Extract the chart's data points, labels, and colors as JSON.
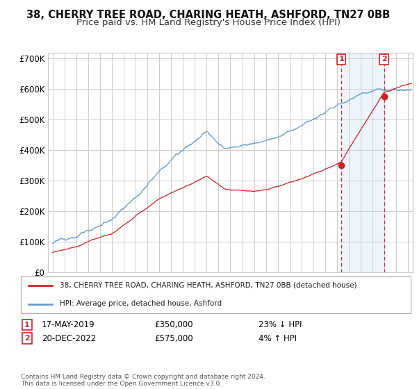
{
  "title1": "38, CHERRY TREE ROAD, CHARING HEATH, ASHFORD, TN27 0BB",
  "title2": "Price paid vs. HM Land Registry's House Price Index (HPI)",
  "ylim": [
    0,
    720000
  ],
  "yticks": [
    0,
    100000,
    200000,
    300000,
    400000,
    500000,
    600000,
    700000
  ],
  "ytick_labels": [
    "£0",
    "£100K",
    "£200K",
    "£300K",
    "£400K",
    "£500K",
    "£600K",
    "£700K"
  ],
  "xlim_start": 1994.6,
  "xlim_end": 2025.4,
  "transaction1_x": 2019.37,
  "transaction1_y": 350000,
  "transaction2_x": 2022.97,
  "transaction2_y": 575000,
  "line1_color": "#cc2222",
  "line2_color": "#6699cc",
  "vline_color": "#cc2222",
  "shading_color": "#cce0f5",
  "legend_label1": "38, CHERRY TREE ROAD, CHARING HEATH, ASHFORD, TN27 0BB (detached house)",
  "legend_label2": "HPI: Average price, detached house, Ashford",
  "transaction1_date": "17-MAY-2019",
  "transaction1_price": "£350,000",
  "transaction1_hpi": "23% ↓ HPI",
  "transaction2_date": "20-DEC-2022",
  "transaction2_price": "£575,000",
  "transaction2_hpi": "4% ↑ HPI",
  "footer": "Contains HM Land Registry data © Crown copyright and database right 2024.\nThis data is licensed under the Open Government Licence v3.0.",
  "background_color": "#ffffff",
  "grid_color": "#cccccc"
}
